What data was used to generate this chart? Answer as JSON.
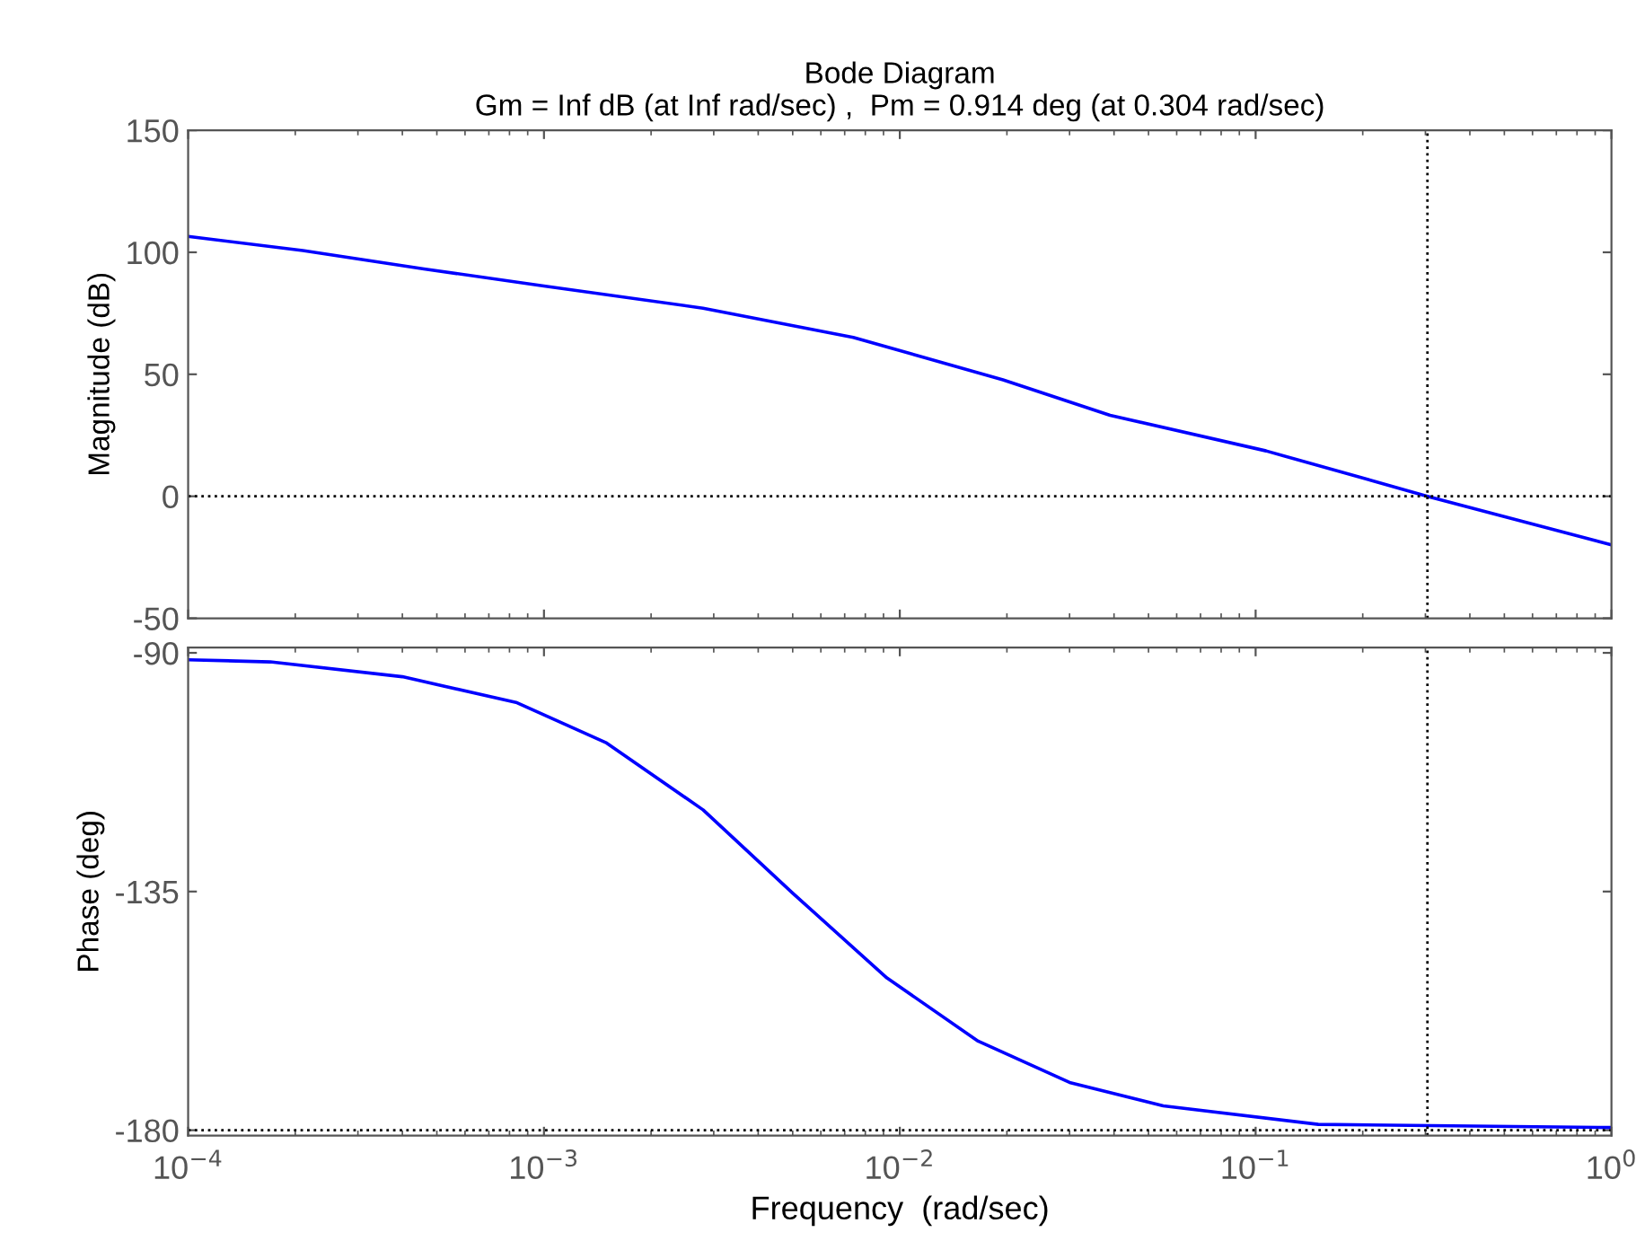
{
  "chart_data": [
    {
      "type": "line",
      "title": "Bode Diagram",
      "subtitle": "Gm = Inf dB (at Inf rad/sec) ,  Pm = 0.914 deg (at 0.304 rad/sec)",
      "ylabel": "Magnitude (dB)",
      "log": "x",
      "tick_labels": "y",
      "grid": false,
      "legend": false,
      "marker": "none",
      "line_style": "solid",
      "xlim": [
        0.0001,
        1
      ],
      "xticks": [
        {
          "value": 0.0001,
          "label": null
        },
        {
          "value": 0.001,
          "label": null
        },
        {
          "value": 0.01,
          "label": null
        },
        {
          "value": 0.1,
          "label": null
        },
        {
          "value": 1,
          "label": null
        }
      ],
      "ylim": [
        -50,
        150
      ],
      "yticks": [
        -50,
        0,
        50,
        100,
        150
      ],
      "series": [
        {
          "color": "#0000ff",
          "x": [
            0.0001,
            0.00021,
            0.00046,
            0.001,
            0.0028,
            0.0074,
            0.0195,
            0.039,
            0.107,
            0.304,
            1
          ],
          "values": [
            106.5,
            100.7,
            93.2,
            86.2,
            77.1,
            65.1,
            47.7,
            33.2,
            18.6,
            0,
            -19.9
          ]
        }
      ],
      "ref_lines": [
        {
          "axis": "y",
          "value": 0,
          "color": "#000000",
          "line_style": "dotted"
        },
        {
          "axis": "x",
          "value": 0.304,
          "color": "#000000",
          "line_style": "dotted"
        }
      ]
    },
    {
      "type": "line",
      "xlabel": "Frequency  (rad/sec)",
      "ylabel": "Phase (deg)",
      "log": "x",
      "grid": false,
      "legend": false,
      "marker": "none",
      "line_style": "solid",
      "xlim": [
        0.0001,
        1
      ],
      "xticks": [
        {
          "value": 0.0001,
          "label": "10$^{−4}$"
        },
        {
          "value": 0.001,
          "label": "10$^{−3}$"
        },
        {
          "value": 0.01,
          "label": "10$^{−2}$"
        },
        {
          "value": 0.1,
          "label": "10$^{−1}$"
        },
        {
          "value": 1,
          "label": "10$^{0}$"
        }
      ],
      "ylim": [
        -181,
        -89
      ],
      "yticks": [
        -180,
        -135,
        -90
      ],
      "series": [
        {
          "color": "#0000ff",
          "x": [
            0.0001,
            0.00017,
            0.0004,
            0.00084,
            0.0015,
            0.0028,
            0.005,
            0.0092,
            0.0166,
            0.03,
            0.055,
            0.15,
            1
          ],
          "values": [
            -91.3,
            -91.7,
            -94.5,
            -99.4,
            -107,
            -119.6,
            -135.3,
            -151.3,
            -163.2,
            -171,
            -175.4,
            -178.9,
            -179.5
          ]
        }
      ],
      "ref_lines": [
        {
          "axis": "y",
          "value": -180,
          "color": "#000000",
          "line_style": "dotted"
        },
        {
          "axis": "x",
          "value": 0.304,
          "color": "#000000",
          "line_style": "dotted"
        }
      ]
    }
  ]
}
